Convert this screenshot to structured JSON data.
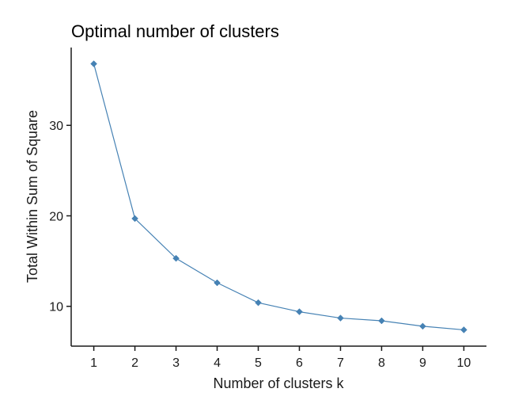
{
  "chart_data": {
    "type": "line",
    "title": "Optimal number of clusters",
    "xlabel": "Number of clusters k",
    "ylabel": "Total Within Sum of Square",
    "x": [
      1,
      2,
      3,
      4,
      5,
      6,
      7,
      8,
      9,
      10
    ],
    "series": [
      {
        "values": [
          36.8,
          19.7,
          15.3,
          12.6,
          10.4,
          9.4,
          8.7,
          8.4,
          7.8,
          7.4
        ]
      }
    ],
    "xticks": [
      "1",
      "2",
      "3",
      "4",
      "5",
      "6",
      "7",
      "8",
      "9",
      "10"
    ],
    "yticks": [
      "10",
      "20",
      "30"
    ],
    "ylim": [
      5.6,
      38.6
    ],
    "grid": false,
    "colors": {
      "series": "#4682B4",
      "axis": "#1a1a1a"
    },
    "marker": "diamond"
  }
}
